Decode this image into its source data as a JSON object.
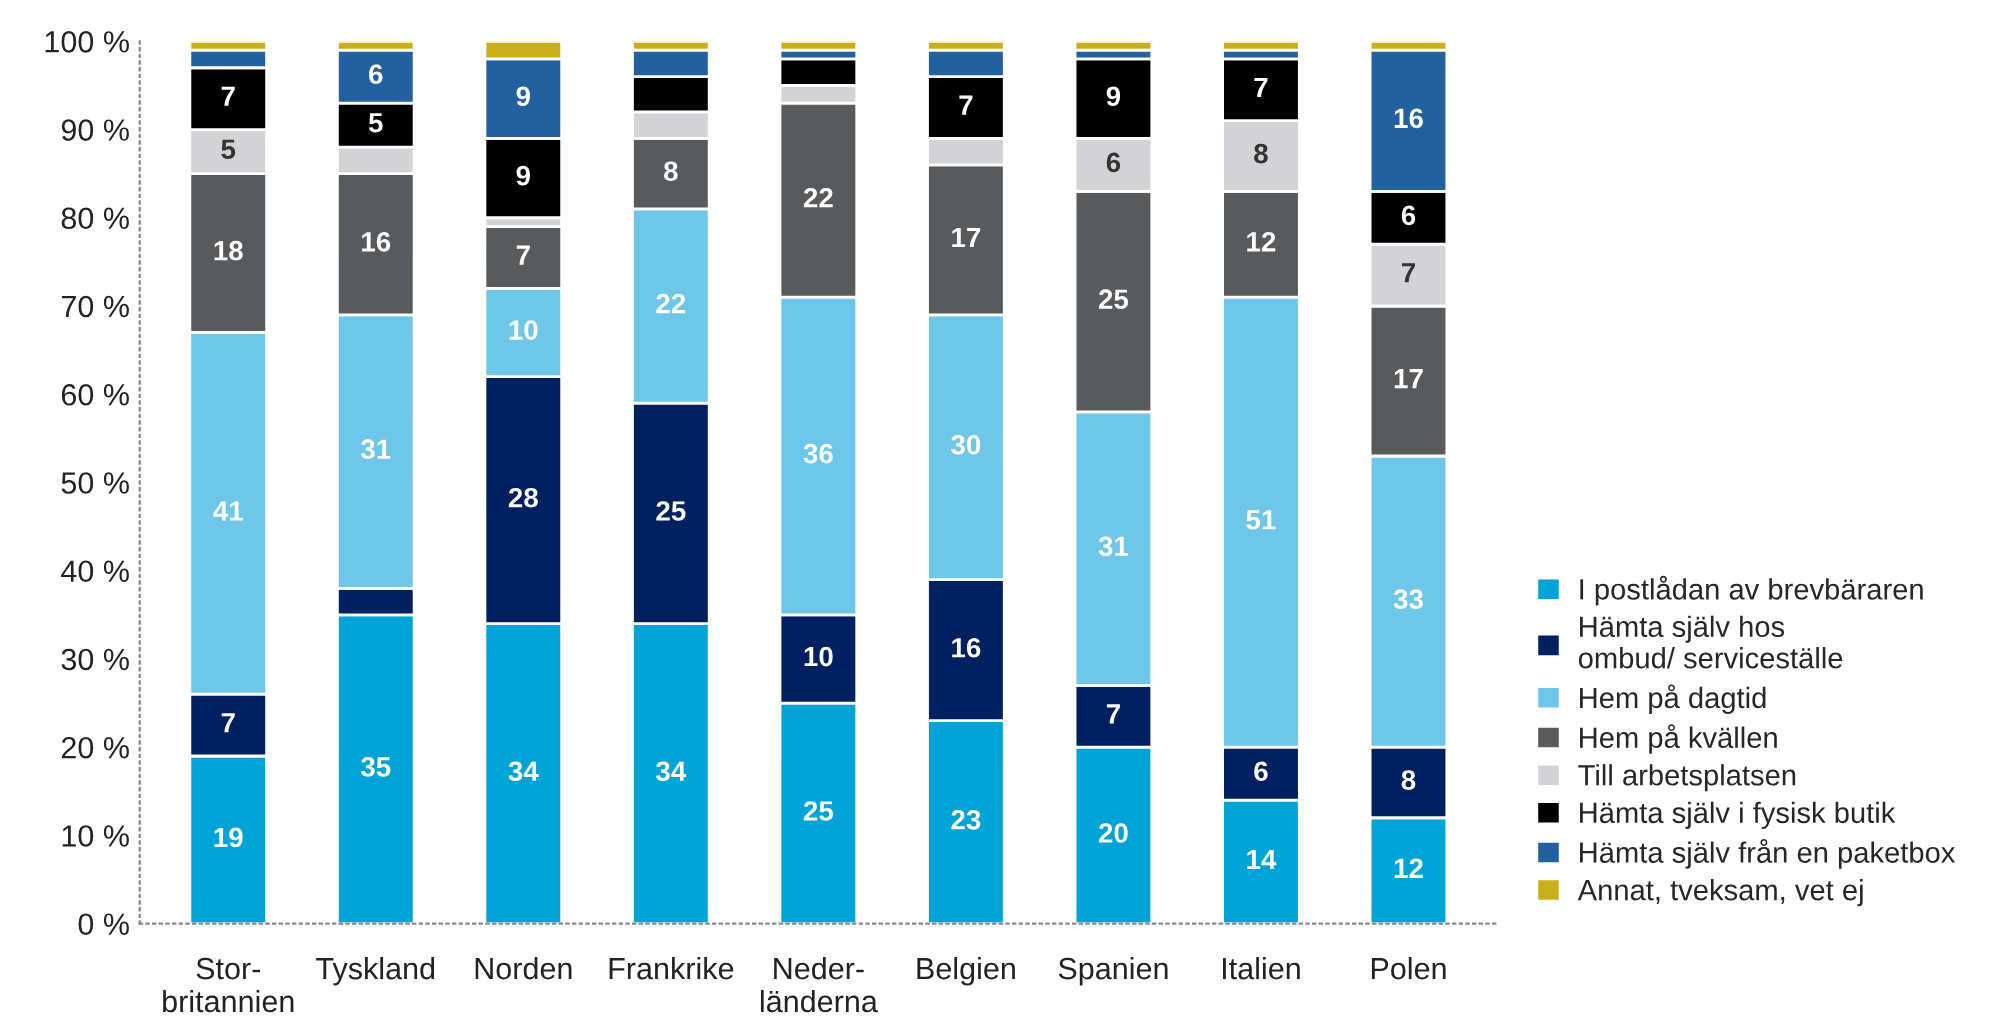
{
  "chart_data": {
    "type": "bar",
    "stacked": true,
    "legend": "right",
    "grid": false,
    "categories": [
      "Stor-\nbritannien",
      "Tyskland",
      "Norden",
      "Frankrike",
      "Neder-\nländerna",
      "Belgien",
      "Spanien",
      "Italien",
      "Polen"
    ],
    "ylim": [
      0,
      100
    ],
    "yticks": [
      {
        "value": 0,
        "label": "0 %"
      },
      {
        "value": 10,
        "label": "10 %"
      },
      {
        "value": 20,
        "label": "20 %"
      },
      {
        "value": 30,
        "label": "30 %"
      },
      {
        "value": 40,
        "label": "40 %"
      },
      {
        "value": 50,
        "label": "50 %"
      },
      {
        "value": 60,
        "label": "60 %"
      },
      {
        "value": 70,
        "label": "70 %"
      },
      {
        "value": 80,
        "label": "80 %"
      },
      {
        "value": 90,
        "label": "90 %"
      },
      {
        "value": 100,
        "label": "100 %"
      }
    ],
    "series": [
      {
        "name": "I postlådan av brevbäraren",
        "color": "#00a3d6",
        "values": [
          19,
          35,
          34,
          34,
          25,
          23,
          20,
          14,
          12
        ],
        "value_labels": [
          "19",
          "35",
          "34",
          "34",
          "25",
          "23",
          "20",
          "14",
          "12"
        ]
      },
      {
        "name": "Hämta själv hos\nombud/ serviceställe",
        "color": "#002060",
        "values": [
          7,
          3,
          28,
          25,
          10,
          16,
          7,
          6,
          8
        ],
        "value_labels": [
          "7",
          null,
          "28",
          "25",
          "10",
          "16",
          "7",
          "6",
          "8"
        ]
      },
      {
        "name": "Hem på dagtid",
        "color": "#6ec6e8",
        "values": [
          41,
          31,
          10,
          22,
          36,
          30,
          31,
          51,
          33
        ],
        "value_labels": [
          "41",
          "31",
          "10",
          "22",
          "36",
          "30",
          "31",
          "51",
          "33"
        ]
      },
      {
        "name": "Hem på kvällen",
        "color": "#595a5c",
        "values": [
          18,
          16,
          7,
          8,
          22,
          17,
          25,
          12,
          17
        ],
        "value_labels": [
          "18",
          "16",
          "7",
          "8",
          "22",
          "17",
          "25",
          "12",
          "17"
        ]
      },
      {
        "name": "Till arbetsplatsen",
        "color": "#d3d3d5",
        "values": [
          5,
          3,
          1,
          3,
          2,
          3,
          6,
          8,
          7
        ],
        "value_labels": [
          "5",
          null,
          null,
          null,
          null,
          null,
          "6",
          "8",
          "7"
        ]
      },
      {
        "name": "Hämta själv i fysisk butik",
        "color": "#000000",
        "values": [
          7,
          5,
          9,
          4,
          3,
          7,
          9,
          7,
          6
        ],
        "value_labels": [
          "7",
          "5",
          "9",
          null,
          null,
          "7",
          "9",
          "7",
          "6"
        ]
      },
      {
        "name": "Hämta själv från en paketbox",
        "color": "#2260a0",
        "values": [
          2,
          6,
          9,
          3,
          1,
          3,
          1,
          1,
          16
        ],
        "value_labels": [
          null,
          "6",
          "9",
          null,
          null,
          null,
          null,
          null,
          "16"
        ]
      },
      {
        "name": "Annat, tveksam, vet ej",
        "color": "#c9b01a",
        "values": [
          1,
          1,
          2,
          1,
          1,
          1,
          1,
          1,
          1
        ],
        "value_labels": [
          null,
          null,
          null,
          null,
          null,
          null,
          null,
          null,
          null
        ]
      }
    ]
  }
}
